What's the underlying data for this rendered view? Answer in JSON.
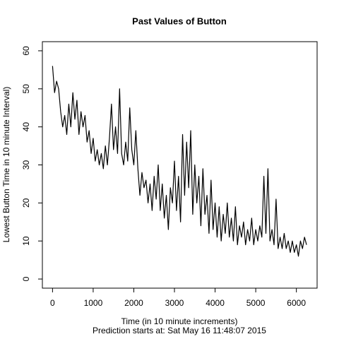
{
  "chart_data": {
    "type": "line",
    "title": "Past Values of Button",
    "x_label": "Time (in 10 minute increments)",
    "y_label": "Lowest Button Time in 10 minute Interval)",
    "subtitle": "Prediction starts at: Sat May 16 11:48:07 2015",
    "x": [
      0,
      50,
      100,
      150,
      200,
      250,
      300,
      350,
      400,
      450,
      500,
      550,
      600,
      650,
      700,
      750,
      800,
      850,
      900,
      950,
      1000,
      1050,
      1100,
      1150,
      1200,
      1250,
      1300,
      1350,
      1400,
      1450,
      1500,
      1550,
      1600,
      1650,
      1700,
      1750,
      1800,
      1850,
      1900,
      1950,
      2000,
      2050,
      2100,
      2150,
      2200,
      2250,
      2300,
      2350,
      2400,
      2450,
      2500,
      2550,
      2600,
      2650,
      2700,
      2750,
      2800,
      2850,
      2900,
      2950,
      3000,
      3050,
      3100,
      3150,
      3200,
      3250,
      3300,
      3350,
      3400,
      3450,
      3500,
      3550,
      3600,
      3650,
      3700,
      3750,
      3800,
      3850,
      3900,
      3950,
      4000,
      4050,
      4100,
      4150,
      4200,
      4250,
      4300,
      4350,
      4400,
      4450,
      4500,
      4550,
      4600,
      4650,
      4700,
      4750,
      4800,
      4850,
      4900,
      4950,
      5000,
      5050,
      5100,
      5150,
      5200,
      5250,
      5300,
      5350,
      5400,
      5450,
      5500,
      5550,
      5600,
      5650,
      5700,
      5750,
      5800,
      5850,
      5900,
      5950,
      6000,
      6050,
      6100,
      6150,
      6200,
      6250
    ],
    "series": [
      {
        "name": "Button",
        "color": "#000000",
        "values": [
          56,
          49,
          52,
          50,
          44,
          40,
          43,
          38,
          46,
          40,
          49,
          42,
          47,
          38,
          44,
          40,
          43,
          36,
          39,
          33,
          37,
          31,
          34,
          30,
          33,
          29,
          35,
          30,
          37,
          46,
          34,
          40,
          33,
          50,
          33,
          30,
          36,
          31,
          45,
          34,
          30,
          39,
          29,
          22,
          28,
          24,
          26,
          20,
          25,
          18,
          27,
          21,
          30,
          18,
          25,
          16,
          22,
          13,
          24,
          20,
          31,
          18,
          27,
          15,
          38,
          22,
          36,
          24,
          39,
          17,
          30,
          20,
          27,
          14,
          29,
          17,
          22,
          12,
          26,
          13,
          20,
          11,
          19,
          10,
          17,
          12,
          20,
          11,
          16,
          10,
          19,
          9,
          14,
          11,
          15,
          9,
          13,
          10,
          16,
          9,
          13,
          10,
          14,
          11,
          27,
          12,
          29,
          10,
          13,
          9,
          21,
          8,
          11,
          8,
          12,
          8,
          10,
          7,
          10,
          7,
          9,
          6,
          10,
          8,
          11,
          9
        ]
      }
    ],
    "xlim": [
      -250,
      6510
    ],
    "ylim": [
      -2.4,
      62.4
    ],
    "xticks": [
      0,
      1000,
      2000,
      3000,
      4000,
      5000,
      6000
    ],
    "yticks": [
      0,
      10,
      20,
      30,
      40,
      50,
      60
    ]
  }
}
